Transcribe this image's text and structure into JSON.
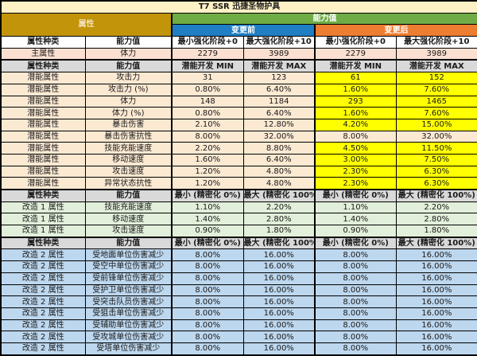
{
  "title": "T7 SSR 迅捷圣物护具",
  "header": {
    "attribute": "属性",
    "ability": "能力值",
    "before": "变更前",
    "after": "变更后"
  },
  "enhance_header": [
    "属性种类",
    "能力值",
    "最小强化阶段+0",
    "最大强化阶段+10",
    "最小强化阶段+0",
    "最大强化阶段+10"
  ],
  "main_stat": [
    "主属性",
    "体力",
    "2279",
    "3989",
    "2279",
    "3989"
  ],
  "potential_header": [
    "属性种类",
    "能力值",
    "潜能开发 MIN",
    "潜能开发 MAX",
    "潜能开发 MIN",
    "潜能开发 MAX"
  ],
  "potential_rows": [
    {
      "category": "潜能属性",
      "label": "攻击力",
      "values": [
        "31",
        "123",
        "61",
        "152"
      ],
      "highlight": true
    },
    {
      "category": "潜能属性",
      "label": "攻击力 (%)",
      "values": [
        "0.80%",
        "6.40%",
        "1.60%",
        "7.60%"
      ],
      "highlight": true
    },
    {
      "category": "潜能属性",
      "label": "体力",
      "values": [
        "148",
        "1184",
        "293",
        "1465"
      ],
      "highlight": true
    },
    {
      "category": "潜能属性",
      "label": "体力 (%)",
      "values": [
        "0.80%",
        "6.40%",
        "1.60%",
        "7.60%"
      ],
      "highlight": true
    },
    {
      "category": "潜能属性",
      "label": "暴击伤害",
      "values": [
        "2.10%",
        "12.80%",
        "4.20%",
        "15.00%"
      ],
      "highlight": true
    },
    {
      "category": "潜能属性",
      "label": "暴击伤害抗性",
      "values": [
        "8.00%",
        "32.00%",
        "8.00%",
        "32.00%"
      ],
      "highlight": false
    },
    {
      "category": "潜能属性",
      "label": "技能充能速度",
      "values": [
        "2.20%",
        "8.80%",
        "4.50%",
        "11.50%"
      ],
      "highlight": true
    },
    {
      "category": "潜能属性",
      "label": "移动速度",
      "values": [
        "1.60%",
        "6.40%",
        "3.00%",
        "7.50%"
      ],
      "highlight": true
    },
    {
      "category": "潜能属性",
      "label": "攻击速度",
      "values": [
        "1.20%",
        "4.80%",
        "2.30%",
        "6.30%"
      ],
      "highlight": true
    },
    {
      "category": "潜能属性",
      "label": "异常状态抗性",
      "values": [
        "1.20%",
        "4.80%",
        "2.30%",
        "6.30%"
      ],
      "highlight": true
    }
  ],
  "refine_header": [
    "属性种类",
    "能力值",
    "最小 (精密化 0%)",
    "最大 (精密化 100%)",
    "最小 (精密化 0%)",
    "最大 (精密化 100%)"
  ],
  "mod1_rows": [
    {
      "category": "改造 1 属性",
      "label": "技能充能速度",
      "values": [
        "1.10%",
        "2.20%",
        "1.10%",
        "2.20%"
      ]
    },
    {
      "category": "改造 1 属性",
      "label": "移动速度",
      "values": [
        "1.40%",
        "2.80%",
        "1.40%",
        "2.80%"
      ]
    },
    {
      "category": "改造 1 属性",
      "label": "攻击速度",
      "values": [
        "0.90%",
        "1.80%",
        "0.90%",
        "1.80%"
      ]
    }
  ],
  "mod2_rows": [
    {
      "category": "改造 2 属性",
      "label": "受地面单位伤害减少",
      "values": [
        "8.00%",
        "16.00%",
        "8.00%",
        "16.00%"
      ]
    },
    {
      "category": "改造 2 属性",
      "label": "受空中单位伤害减少",
      "values": [
        "8.00%",
        "16.00%",
        "8.00%",
        "16.00%"
      ]
    },
    {
      "category": "改造 2 属性",
      "label": "受前锋单位伤害减少",
      "values": [
        "8.00%",
        "16.00%",
        "8.00%",
        "16.00%"
      ]
    },
    {
      "category": "改造 2 属性",
      "label": "受护卫单位伤害减少",
      "values": [
        "8.00%",
        "16.00%",
        "8.00%",
        "16.00%"
      ]
    },
    {
      "category": "改造 2 属性",
      "label": "受突击队员伤害减少",
      "values": [
        "8.00%",
        "16.00%",
        "8.00%",
        "16.00%"
      ]
    },
    {
      "category": "改造 2 属性",
      "label": "受狙击单位伤害减少",
      "values": [
        "8.00%",
        "16.00%",
        "8.00%",
        "16.00%"
      ]
    },
    {
      "category": "改造 2 属性",
      "label": "受辅助单位伤害减少",
      "values": [
        "8.00%",
        "16.00%",
        "8.00%",
        "16.00%"
      ]
    },
    {
      "category": "改造 2 属性",
      "label": "受攻城单位伤害减少",
      "values": [
        "8.00%",
        "16.00%",
        "8.00%",
        "16.00%"
      ]
    },
    {
      "category": "改造 2 属性",
      "label": "受塔单位伤害减少",
      "values": [
        "8.00%",
        "16.00%",
        "8.00%",
        "16.00%"
      ]
    }
  ],
  "colors": {
    "title_bg": "#FFF1C6",
    "attribute_header_bg": "#C2940A",
    "ability_header_bg": "#6FAC46",
    "before_header_bg": "#1F7EC4",
    "after_header_bg": "#ED7D31",
    "main_stat_row_bg": "#FBDFD0",
    "section_header_bg": "#D9D9D9",
    "potential_row_bg": "#FBE9D2",
    "highlight_bg": "#FFFF00",
    "mod1_row_bg": "#E2EFDA",
    "mod2_row_bg": "#BDD7EE"
  }
}
